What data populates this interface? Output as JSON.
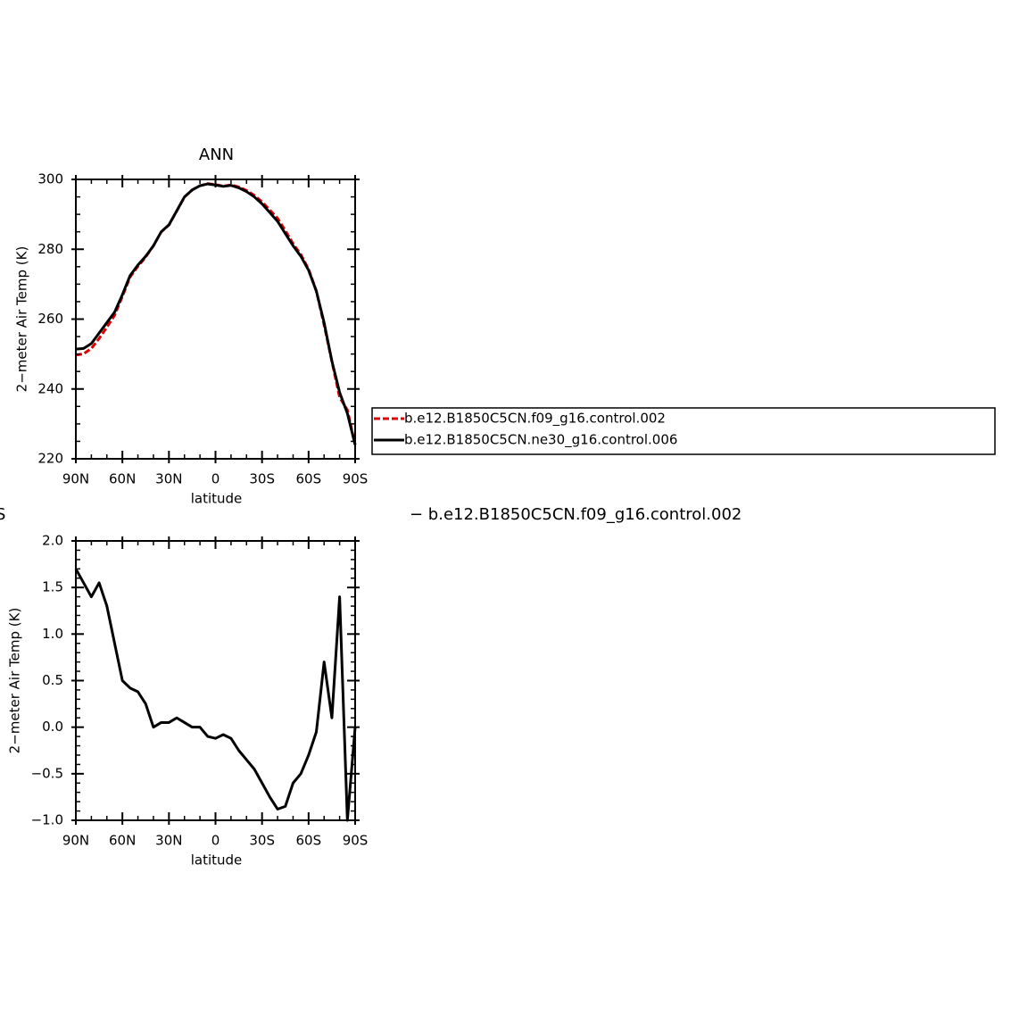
{
  "chart_data": [
    {
      "type": "line",
      "title": "ANN",
      "xlabel": "latitude",
      "ylabel": "2−meter Air Temp (K)",
      "x": [
        90,
        85,
        80,
        75,
        70,
        65,
        60,
        55,
        50,
        45,
        40,
        35,
        30,
        25,
        20,
        15,
        10,
        5,
        0,
        -5,
        -10,
        -15,
        -20,
        -25,
        -30,
        -35,
        -40,
        -45,
        -50,
        -55,
        -60,
        -65,
        -70,
        -75,
        -80,
        -85,
        -90
      ],
      "xlim": [
        90,
        -90
      ],
      "xticks": [
        {
          "value": 90,
          "label": "90N"
        },
        {
          "value": 60,
          "label": "60N"
        },
        {
          "value": 30,
          "label": "30N"
        },
        0,
        {
          "value": -30,
          "label": "30S"
        },
        {
          "value": -60,
          "label": "60S"
        },
        {
          "value": -90,
          "label": "90S"
        }
      ],
      "ylim": [
        220,
        300
      ],
      "yticks": [
        220,
        240,
        260,
        280,
        300
      ],
      "legend": "right",
      "series": [
        {
          "name": "b.e12.B1850C5CN.f09_g16.control.002",
          "color": "#e00000",
          "dash": true,
          "values": [
            249.7,
            250.05,
            251.6,
            254.45,
            257.7,
            261.1,
            266.5,
            272.08,
            275.12,
            277.75,
            281,
            284.95,
            286.95,
            290.9,
            294.95,
            297,
            298.2,
            298.8,
            298.52,
            298.08,
            298.42,
            297.85,
            296.85,
            295.45,
            293.6,
            291.25,
            288.88,
            285.35,
            281.6,
            278.5,
            274.3,
            268.05,
            258.3,
            247.9,
            237.6,
            234,
            224
          ]
        },
        {
          "name": "b.e12.B1850C5CN.ne30_g16.control.006",
          "color": "#000000",
          "dash": false,
          "values": [
            251.4,
            251.6,
            253,
            256,
            259,
            262,
            267,
            272.5,
            275.5,
            278,
            281,
            285,
            287,
            291,
            295,
            297,
            298.2,
            298.7,
            298.4,
            298,
            298.3,
            297.6,
            296.5,
            295,
            293,
            290.5,
            288,
            284.5,
            281,
            278,
            274,
            268,
            259,
            248,
            239,
            233,
            224
          ]
        }
      ]
    },
    {
      "type": "line",
      "xlabel": "latitude",
      "ylabel": "2−meter Air Temp (K)",
      "annotations": [
        "S",
        "− b.e12.B1850C5CN.f09_g16.control.002"
      ],
      "x": [
        90,
        85,
        80,
        75,
        70,
        65,
        60,
        55,
        50,
        45,
        40,
        35,
        30,
        25,
        20,
        15,
        10,
        5,
        0,
        -5,
        -10,
        -15,
        -20,
        -25,
        -30,
        -35,
        -40,
        -45,
        -50,
        -55,
        -60,
        -65,
        -70,
        -75,
        -80,
        -85,
        -90
      ],
      "xlim": [
        90,
        -90
      ],
      "xticks": [
        {
          "value": 90,
          "label": "90N"
        },
        {
          "value": 60,
          "label": "60N"
        },
        {
          "value": 30,
          "label": "30N"
        },
        0,
        {
          "value": -30,
          "label": "30S"
        },
        {
          "value": -60,
          "label": "60S"
        },
        {
          "value": -90,
          "label": "90S"
        }
      ],
      "ylim": [
        -1,
        2
      ],
      "yticks": [
        {
          "value": -1,
          "label": "−1.0"
        },
        {
          "value": -0.5,
          "label": "−0.5"
        },
        {
          "value": 0,
          "label": "0.0"
        },
        {
          "value": 0.5,
          "label": "0.5"
        },
        {
          "value": 1,
          "label": "1.0"
        },
        {
          "value": 1.5,
          "label": "1.5"
        },
        {
          "value": 2,
          "label": "2.0"
        }
      ],
      "series": [
        {
          "color": "#000000",
          "dash": false,
          "values": [
            1.7,
            1.55,
            1.4,
            1.55,
            1.3,
            0.9,
            0.5,
            0.42,
            0.38,
            0.25,
            0.0,
            0.05,
            0.05,
            0.1,
            0.05,
            0.0,
            0.0,
            -0.1,
            -0.12,
            -0.08,
            -0.12,
            -0.25,
            -0.35,
            -0.45,
            -0.6,
            -0.75,
            -0.88,
            -0.85,
            -0.6,
            -0.5,
            -0.3,
            -0.05,
            0.7,
            0.1,
            1.4,
            -1.0,
            0.0
          ]
        }
      ]
    }
  ]
}
